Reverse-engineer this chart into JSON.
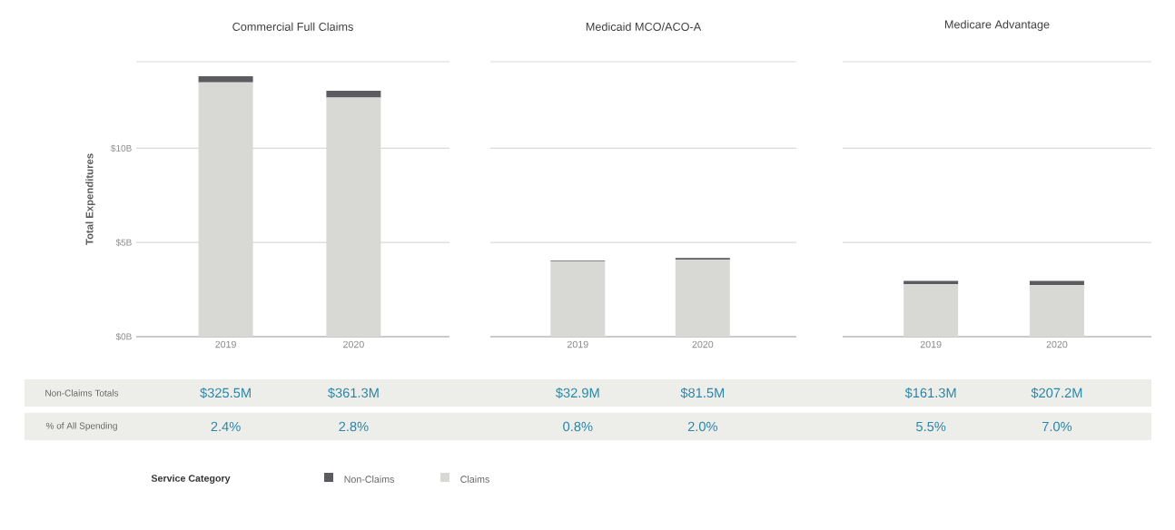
{
  "chart_data": [
    {
      "type": "bar",
      "stacked": true,
      "title": "Commercial Full Claims",
      "ylabel": "Total Expenditures",
      "legend_title": "Service Category",
      "legend": "bottom",
      "grid": "y",
      "categories": [
        "2019",
        "2020"
      ],
      "ylim": [
        0,
        14.6
      ],
      "yticks": [
        {
          "value": 0,
          "label": "$0B"
        },
        {
          "value": 5,
          "label": "$5B"
        },
        {
          "value": 10,
          "label": "$10B"
        },
        {
          "value": 14.6,
          "label": null
        }
      ],
      "series": [
        {
          "name": "Claims",
          "color": "#d8d8d5",
          "values": [
            13.5,
            12.7
          ]
        },
        {
          "name": "Non-Claims",
          "color": "#5c5c60",
          "values": [
            0.3255,
            0.3613
          ]
        }
      ],
      "annotations": [
        "Non-Claims Totals",
        "% of All Spending",
        "$325.5M",
        "$361.3M",
        "2.4%",
        "2.8%"
      ]
    },
    {
      "type": "bar",
      "stacked": true,
      "title": "Medicaid MCO/ACO-A",
      "grid": "y",
      "tick_labels": "x",
      "categories": [
        "2019",
        "2020"
      ],
      "ylim": [
        0,
        14.6
      ],
      "yticks": [
        {
          "value": 0,
          "label": null
        },
        {
          "value": 5,
          "label": null
        },
        {
          "value": 10,
          "label": null
        },
        {
          "value": 14.6,
          "label": null
        }
      ],
      "series": [
        {
          "color": "#d8d8d5",
          "values": [
            4.0,
            4.1
          ]
        },
        {
          "color": "#5c5c60",
          "values": [
            0.0329,
            0.0815
          ]
        }
      ],
      "annotations": [
        "$32.9M",
        "$81.5M",
        "0.8%",
        "2.0%"
      ]
    },
    {
      "type": "bar",
      "stacked": true,
      "title": "Medicare Advantage",
      "grid": "y",
      "tick_labels": "x",
      "categories": [
        "2019",
        "2020"
      ],
      "ylim": [
        0,
        14.6
      ],
      "yticks": [
        {
          "value": 0,
          "label": null
        },
        {
          "value": 5,
          "label": null
        },
        {
          "value": 10,
          "label": null
        },
        {
          "value": 14.6,
          "label": null
        }
      ],
      "series": [
        {
          "color": "#d8d8d5",
          "values": [
            2.8,
            2.75
          ]
        },
        {
          "color": "#5c5c60",
          "values": [
            0.1613,
            0.2072
          ]
        }
      ],
      "annotations": [
        "$161.3M",
        "$207.2M",
        "5.5%",
        "7.0%"
      ]
    }
  ]
}
